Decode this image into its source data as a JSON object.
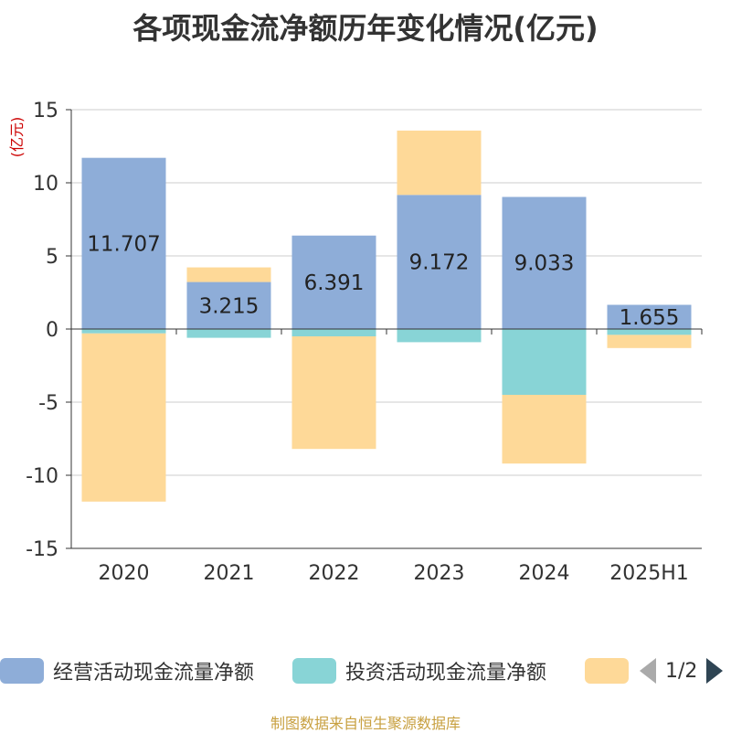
{
  "chart_data": {
    "type": "bar",
    "stacked": true,
    "title": "各项现金流净额历年变化情况(亿元)",
    "unit_label": "(亿元)",
    "categories": [
      "2020",
      "2021",
      "2022",
      "2023",
      "2024",
      "2025H1"
    ],
    "ylim": [
      -15,
      15
    ],
    "yticks": [
      15,
      10,
      5,
      0,
      -5,
      -10,
      -15
    ],
    "ytick_labels": [
      "15",
      "10",
      "5",
      "0",
      "-5",
      "-10",
      "-15"
    ],
    "grid": true,
    "series": [
      {
        "name": "经营活动现金流量净额",
        "color": "#8eadd8",
        "values": [
          11.707,
          3.215,
          6.391,
          9.172,
          9.033,
          1.655
        ],
        "labels": [
          "11.707",
          "3.215",
          "6.391",
          "9.172",
          "9.033",
          "1.655"
        ]
      },
      {
        "name": "投资活动现金流量净额",
        "color": "#88d4d6",
        "values": [
          -0.3,
          -0.6,
          -0.5,
          -0.9,
          -4.5,
          -0.4
        ]
      },
      {
        "name": "",
        "color": "#fed998",
        "values": [
          -11.5,
          1.0,
          -7.7,
          4.4,
          -4.7,
          -0.9
        ]
      }
    ]
  },
  "legend": {
    "page": "1/2"
  },
  "source": "制图数据来自恒生聚源数据库"
}
